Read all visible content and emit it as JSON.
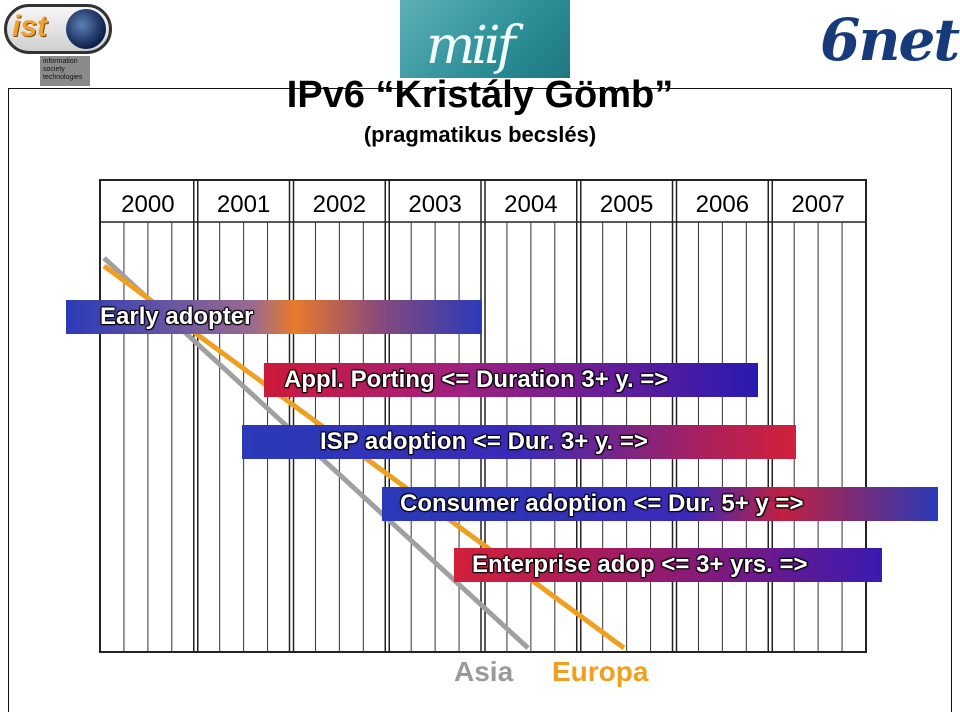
{
  "logos": {
    "ist": {
      "text": "ist",
      "caption_lines": [
        "information",
        "society",
        "technologies"
      ]
    },
    "miif": {
      "text": "miif"
    },
    "sixnet": {
      "text": "6net"
    }
  },
  "title": "IPv6 “Kristály Gömb”",
  "subtitle": "(pragmatikus becslés)",
  "years": [
    "2000",
    "2001",
    "2002",
    "2003",
    "2004",
    "2005",
    "2006",
    "2007"
  ],
  "phases": {
    "early": "Early adopter",
    "appl": "Appl. Porting <= Duration 3+ y. =>",
    "isp": "ISP adoption <= Dur. 3+ y. =>",
    "consumer": "Consumer adoption <= Dur. 5+ y =>",
    "enterprise": "Enterprise adop <= 3+ yrs. =>"
  },
  "legend": {
    "asia": "Asia",
    "europa": "Europa"
  },
  "colors": {
    "asia_line": "#a0a0a0",
    "europa_line": "#f0a020"
  }
}
